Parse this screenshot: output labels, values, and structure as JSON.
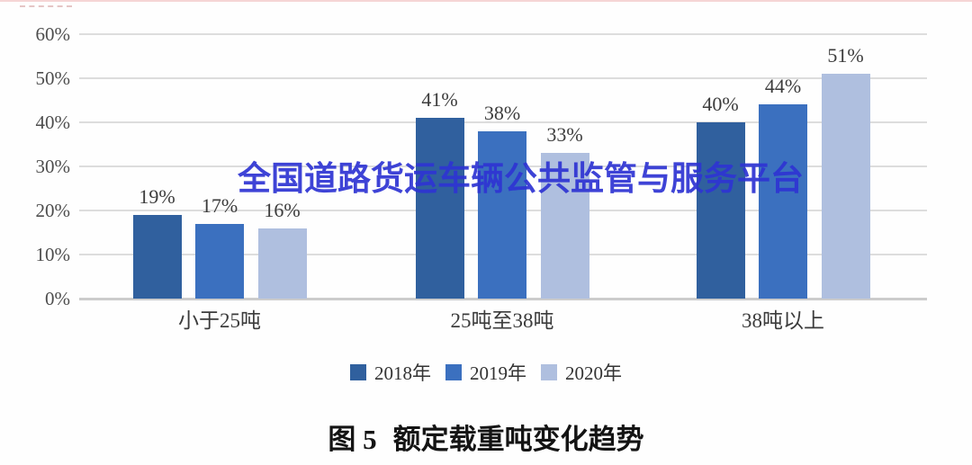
{
  "chart_data": {
    "type": "bar",
    "title": "",
    "categories": [
      "小于25吨",
      "25吨至38吨",
      "38吨以上"
    ],
    "series": [
      {
        "name": "2018年",
        "color": "#30609E",
        "values": [
          19,
          41,
          40
        ]
      },
      {
        "name": "2019年",
        "color": "#3B70BF",
        "values": [
          17,
          38,
          44
        ]
      },
      {
        "name": "2020年",
        "color": "#AFBFDF",
        "values": [
          16,
          33,
          51
        ]
      }
    ],
    "value_labels": [
      [
        "19%",
        "41%",
        "40%"
      ],
      [
        "17%",
        "38%",
        "44%"
      ],
      [
        "16%",
        "33%",
        "51%"
      ]
    ],
    "value_suffix": "%",
    "y_ticks": [
      "0%",
      "10%",
      "20%",
      "30%",
      "40%",
      "50%",
      "60%"
    ],
    "ylim": [
      0,
      60
    ],
    "grid": true,
    "legend_position": "bottom",
    "xlabel": "",
    "ylabel": ""
  },
  "watermark": {
    "text": "全国道路货运车辆公共监管与服务平台",
    "color": "#2E34D3"
  },
  "caption": {
    "prefix": "图 5",
    "text": "额定载重吨变化趋势"
  }
}
